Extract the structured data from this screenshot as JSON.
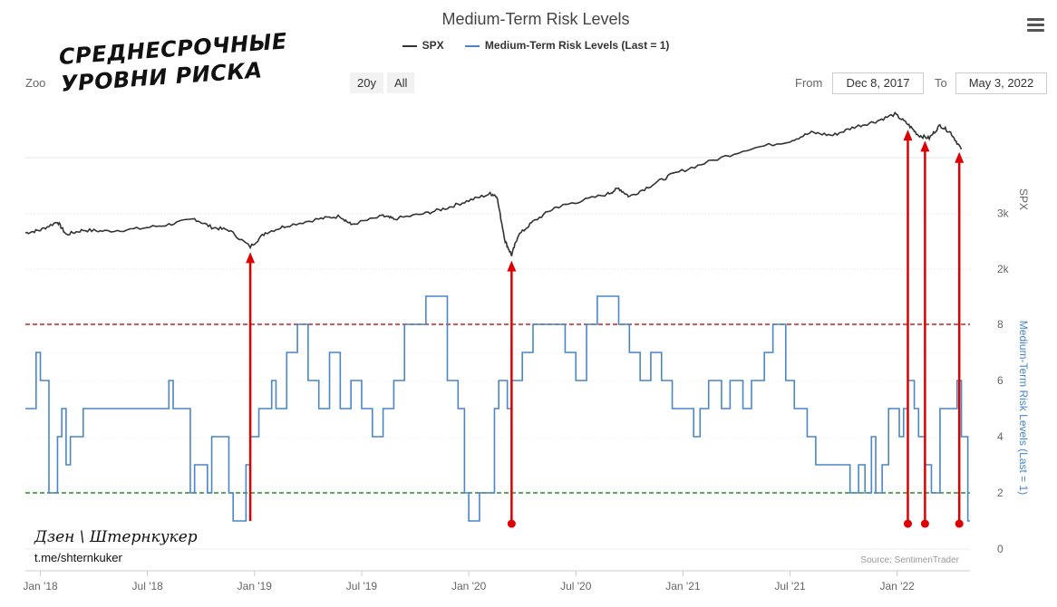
{
  "header": {
    "title": "Medium-Term Risk Levels"
  },
  "legend": [
    {
      "label": "SPX",
      "color": "#333333"
    },
    {
      "label": "Medium-Term Risk Levels (Last = 1)",
      "color": "#4a86c8"
    }
  ],
  "toolbar": {
    "zoom_label": "Zoo",
    "zoom_buttons": [
      "20y",
      "All"
    ],
    "from_label": "From",
    "from_value": "Dec 8, 2017",
    "to_label": "To",
    "to_value": "May 3, 2022"
  },
  "overlay": {
    "title_line1": "СРЕДНЕСРОЧНЫЕ",
    "title_line2": "УРОВНИ РИСКА",
    "channel": "Дзен \\ Штернкукер",
    "link": "t.me/shternkuker"
  },
  "source": "Source: SentimenTrader",
  "colors": {
    "spx": "#333333",
    "risk": "#4a86c8",
    "upper_line": "#cc2222",
    "lower_line": "#2a8a2a",
    "arrow": "#dd0000"
  },
  "chart_data": {
    "type": "line",
    "title": "Medium-Term Risk Levels",
    "x_range": [
      "2017-12-08",
      "2022-05-03"
    ],
    "x_ticks": [
      "Jan '18",
      "Jul '18",
      "Jan '19",
      "Jul '19",
      "Jan '20",
      "Jul '20",
      "Jan '21",
      "Jul '21",
      "Jan '22"
    ],
    "y_axes": [
      {
        "name": "SPX",
        "ticks": [
          "2k",
          "3k"
        ],
        "tick_values": [
          2000,
          3000
        ]
      },
      {
        "name": "Medium-Term Risk Levels (Last = 1)",
        "ticks": [
          "0",
          "2",
          "4",
          "6",
          "8"
        ],
        "tick_values": [
          0,
          2,
          4,
          6,
          8
        ]
      }
    ],
    "series": [
      {
        "name": "SPX",
        "axis": 0,
        "x": [
          2017.93,
          2018.0,
          2018.08,
          2018.12,
          2018.2,
          2018.3,
          2018.45,
          2018.6,
          2018.72,
          2018.8,
          2018.88,
          2018.98,
          2019.05,
          2019.15,
          2019.3,
          2019.4,
          2019.45,
          2019.6,
          2019.65,
          2019.8,
          2019.9,
          2020.0,
          2020.1,
          2020.13,
          2020.17,
          2020.2,
          2020.23,
          2020.3,
          2020.4,
          2020.5,
          2020.65,
          2020.7,
          2020.75,
          2020.85,
          2020.95,
          2021.1,
          2021.3,
          2021.5,
          2021.6,
          2021.7,
          2021.8,
          2021.9,
          2021.99,
          2022.05,
          2022.1,
          2022.15,
          2022.2,
          2022.25,
          2022.3
        ],
        "values": [
          2650,
          2700,
          2850,
          2620,
          2700,
          2680,
          2720,
          2800,
          2900,
          2750,
          2700,
          2400,
          2650,
          2780,
          2900,
          2950,
          2800,
          2950,
          2900,
          3000,
          3100,
          3230,
          3350,
          3320,
          2500,
          2250,
          2600,
          2850,
          3100,
          3200,
          3350,
          3450,
          3300,
          3500,
          3700,
          3900,
          4150,
          4300,
          4450,
          4400,
          4550,
          4650,
          4780,
          4600,
          4400,
          4350,
          4580,
          4450,
          4150
        ]
      },
      {
        "name": "Medium-Term Risk Levels (Last = 1)",
        "axis": 1,
        "x": [
          2017.93,
          2017.98,
          2018.0,
          2018.02,
          2018.04,
          2018.08,
          2018.1,
          2018.12,
          2018.14,
          2018.2,
          2018.22,
          2018.24,
          2018.3,
          2018.35,
          2018.4,
          2018.45,
          2018.55,
          2018.6,
          2018.62,
          2018.7,
          2018.72,
          2018.78,
          2018.8,
          2018.88,
          2018.9,
          2018.96,
          2018.98,
          2019.02,
          2019.08,
          2019.1,
          2019.15,
          2019.2,
          2019.25,
          2019.3,
          2019.35,
          2019.4,
          2019.45,
          2019.5,
          2019.55,
          2019.6,
          2019.65,
          2019.7,
          2019.75,
          2019.8,
          2019.85,
          2019.9,
          2019.95,
          2019.98,
          2020.0,
          2020.05,
          2020.12,
          2020.14,
          2020.18,
          2020.2,
          2020.25,
          2020.3,
          2020.35,
          2020.4,
          2020.45,
          2020.5,
          2020.55,
          2020.6,
          2020.65,
          2020.7,
          2020.75,
          2020.8,
          2020.85,
          2020.9,
          2020.95,
          2021.0,
          2021.05,
          2021.08,
          2021.12,
          2021.18,
          2021.22,
          2021.28,
          2021.32,
          2021.38,
          2021.42,
          2021.48,
          2021.52,
          2021.58,
          2021.62,
          2021.68,
          2021.72,
          2021.78,
          2021.82,
          2021.85,
          2021.88,
          2021.9,
          2021.93,
          2021.96,
          2021.99,
          2022.01,
          2022.03,
          2022.05,
          2022.08,
          2022.1,
          2022.13,
          2022.16,
          2022.2,
          2022.25,
          2022.28,
          2022.3,
          2022.33
        ],
        "values": [
          5,
          7,
          6,
          6,
          2,
          4,
          5,
          3,
          4,
          5,
          5,
          5,
          5,
          5,
          5,
          5,
          5,
          6,
          5,
          2,
          3,
          2,
          4,
          2,
          1,
          3,
          4,
          5,
          6,
          5,
          7,
          8,
          6,
          5,
          7,
          5,
          6,
          5,
          4,
          5,
          6,
          8,
          8,
          9,
          9,
          6,
          5,
          2,
          1,
          2,
          5,
          6,
          5,
          6,
          7,
          8,
          8,
          8,
          7,
          6,
          8,
          9,
          9,
          8,
          7,
          6,
          7,
          6,
          5,
          5,
          4,
          5,
          6,
          5,
          6,
          5,
          6,
          7,
          8,
          6,
          5,
          4,
          3,
          3,
          3,
          2,
          3,
          2,
          4,
          2,
          3,
          5,
          5,
          4,
          5,
          6,
          5,
          4,
          3,
          2,
          5,
          5,
          6,
          4,
          1
        ]
      }
    ],
    "reference_lines": [
      {
        "axis": 1,
        "value": 8,
        "style": "dashed",
        "color": "red"
      },
      {
        "axis": 1,
        "value": 2,
        "style": "dashed",
        "color": "green"
      }
    ],
    "annotations": [
      {
        "type": "arrow",
        "x": 2018.98,
        "from_risk": 1.0,
        "to_spx": 2400
      },
      {
        "type": "arrow_dot",
        "x": 2020.2,
        "from_risk": 0.9,
        "to_spx": 2250
      },
      {
        "type": "arrow_dot",
        "x": 2022.05,
        "from_risk": 0.9,
        "to_spx": 4600
      },
      {
        "type": "arrow_dot",
        "x": 2022.13,
        "from_risk": 0.9,
        "to_spx": 4400
      },
      {
        "type": "arrow_dot",
        "x": 2022.29,
        "from_risk": 0.9,
        "to_spx": 4200
      }
    ]
  }
}
